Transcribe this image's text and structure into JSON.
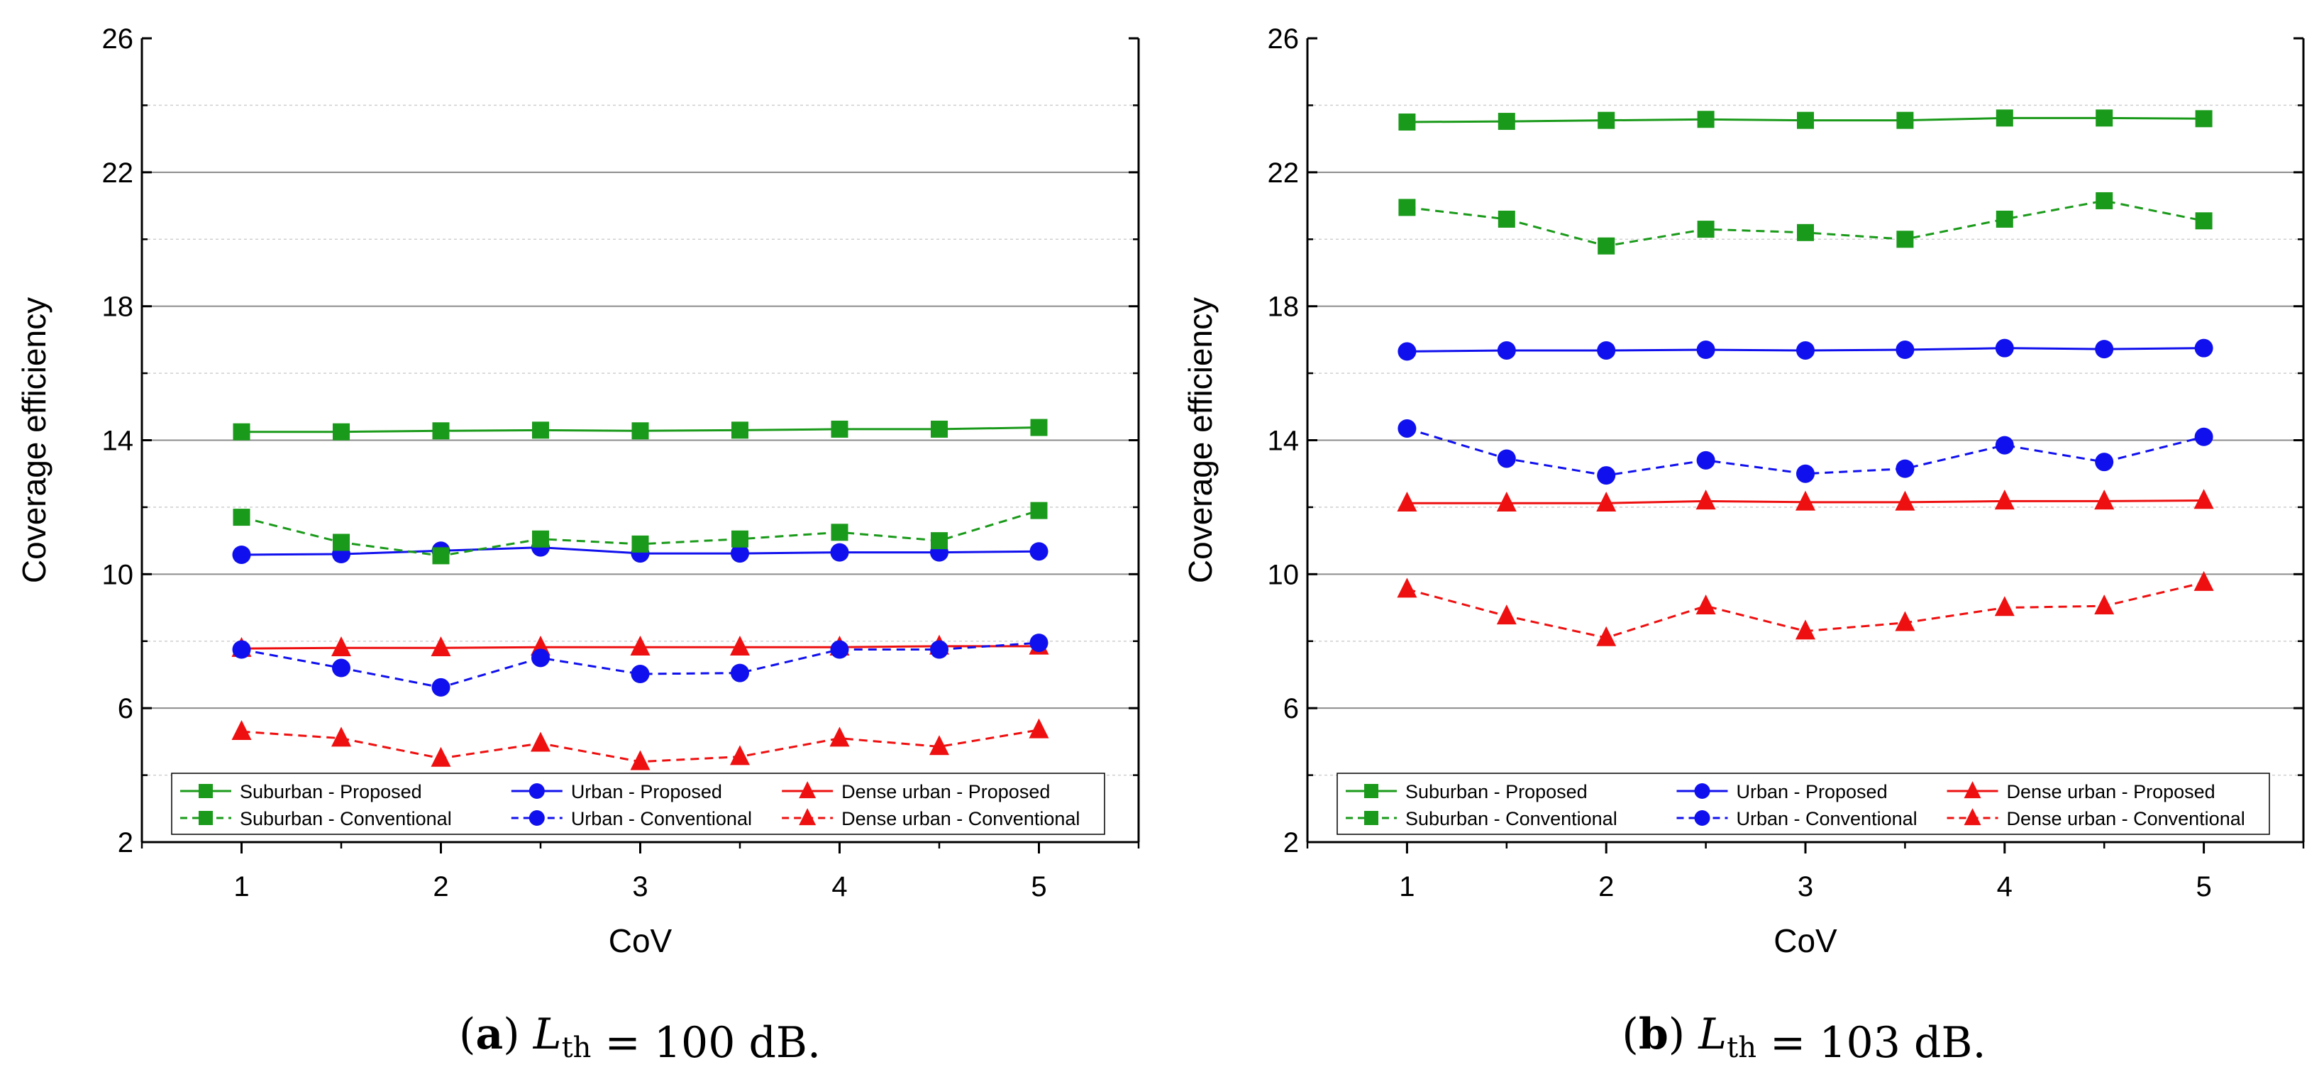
{
  "chart_data": [
    {
      "type": "line",
      "title": "",
      "xlabel": "CoV",
      "ylabel": "Coverage efficiency",
      "xlim": [
        0.5,
        5.5
      ],
      "ylim": [
        2,
        26
      ],
      "xticks": [
        1,
        2,
        3,
        4,
        5
      ],
      "yticks": [
        2,
        6,
        10,
        14,
        18,
        22,
        26
      ],
      "grid": true,
      "legend_position": "bottom",
      "caption": {
        "panel": "a",
        "symbol": "L",
        "subscript": "th",
        "expr": " = 100 dB."
      },
      "x": [
        1,
        1.5,
        2,
        2.5,
        3,
        3.5,
        4,
        4.5,
        5
      ],
      "series": [
        {
          "name": "Suburban - Proposed",
          "color": "#1a9a1a",
          "marker": "square",
          "dash": "solid",
          "values": [
            14.25,
            14.25,
            14.28,
            14.3,
            14.28,
            14.3,
            14.33,
            14.33,
            14.38
          ]
        },
        {
          "name": "Urban - Proposed",
          "color": "#1010ee",
          "marker": "circle",
          "dash": "solid",
          "values": [
            10.58,
            10.6,
            10.7,
            10.8,
            10.62,
            10.62,
            10.65,
            10.65,
            10.68
          ]
        },
        {
          "name": "Dense urban - Proposed",
          "color": "#ee1010",
          "marker": "triangle",
          "dash": "solid",
          "values": [
            7.78,
            7.8,
            7.8,
            7.82,
            7.82,
            7.82,
            7.82,
            7.85,
            7.85
          ]
        },
        {
          "name": "Suburban - Conventional",
          "color": "#1a9a1a",
          "marker": "square",
          "dash": "dashed",
          "values": [
            11.7,
            10.95,
            10.55,
            11.05,
            10.9,
            11.05,
            11.25,
            11.0,
            11.9
          ]
        },
        {
          "name": "Urban - Conventional",
          "color": "#1010ee",
          "marker": "circle",
          "dash": "dashed",
          "values": [
            7.75,
            7.2,
            6.62,
            7.5,
            7.02,
            7.05,
            7.75,
            7.75,
            7.95
          ]
        },
        {
          "name": "Dense urban - Conventional",
          "color": "#ee1010",
          "marker": "triangle",
          "dash": "dashed",
          "values": [
            5.3,
            5.1,
            4.5,
            4.95,
            4.4,
            4.55,
            5.1,
            4.85,
            5.35
          ]
        }
      ]
    },
    {
      "type": "line",
      "title": "",
      "xlabel": "CoV",
      "ylabel": "Coverage efficiency",
      "xlim": [
        0.5,
        5.5
      ],
      "ylim": [
        2,
        26
      ],
      "xticks": [
        1,
        2,
        3,
        4,
        5
      ],
      "yticks": [
        2,
        6,
        10,
        14,
        18,
        22,
        26
      ],
      "grid": true,
      "legend_position": "bottom",
      "caption": {
        "panel": "b",
        "symbol": "L",
        "subscript": "th",
        "expr": " = 103 dB."
      },
      "x": [
        1,
        1.5,
        2,
        2.5,
        3,
        3.5,
        4,
        4.5,
        5
      ],
      "series": [
        {
          "name": "Suburban - Proposed",
          "color": "#1a9a1a",
          "marker": "square",
          "dash": "solid",
          "values": [
            23.5,
            23.52,
            23.55,
            23.58,
            23.55,
            23.55,
            23.62,
            23.62,
            23.6
          ]
        },
        {
          "name": "Urban - Proposed",
          "color": "#1010ee",
          "marker": "circle",
          "dash": "solid",
          "values": [
            16.65,
            16.68,
            16.68,
            16.7,
            16.68,
            16.7,
            16.75,
            16.72,
            16.75
          ]
        },
        {
          "name": "Dense urban - Proposed",
          "color": "#ee1010",
          "marker": "triangle",
          "dash": "solid",
          "values": [
            12.12,
            12.12,
            12.12,
            12.18,
            12.15,
            12.15,
            12.18,
            12.18,
            12.2
          ]
        },
        {
          "name": "Suburban - Conventional",
          "color": "#1a9a1a",
          "marker": "square",
          "dash": "dashed",
          "values": [
            20.95,
            20.6,
            19.8,
            20.3,
            20.2,
            20.0,
            20.6,
            21.15,
            20.55
          ]
        },
        {
          "name": "Urban - Conventional",
          "color": "#1010ee",
          "marker": "circle",
          "dash": "dashed",
          "values": [
            14.35,
            13.45,
            12.95,
            13.4,
            13.0,
            13.15,
            13.85,
            13.35,
            14.1
          ]
        },
        {
          "name": "Dense urban - Conventional",
          "color": "#ee1010",
          "marker": "triangle",
          "dash": "dashed",
          "values": [
            9.55,
            8.75,
            8.1,
            9.05,
            8.3,
            8.55,
            9.0,
            9.05,
            9.75
          ]
        }
      ]
    }
  ]
}
